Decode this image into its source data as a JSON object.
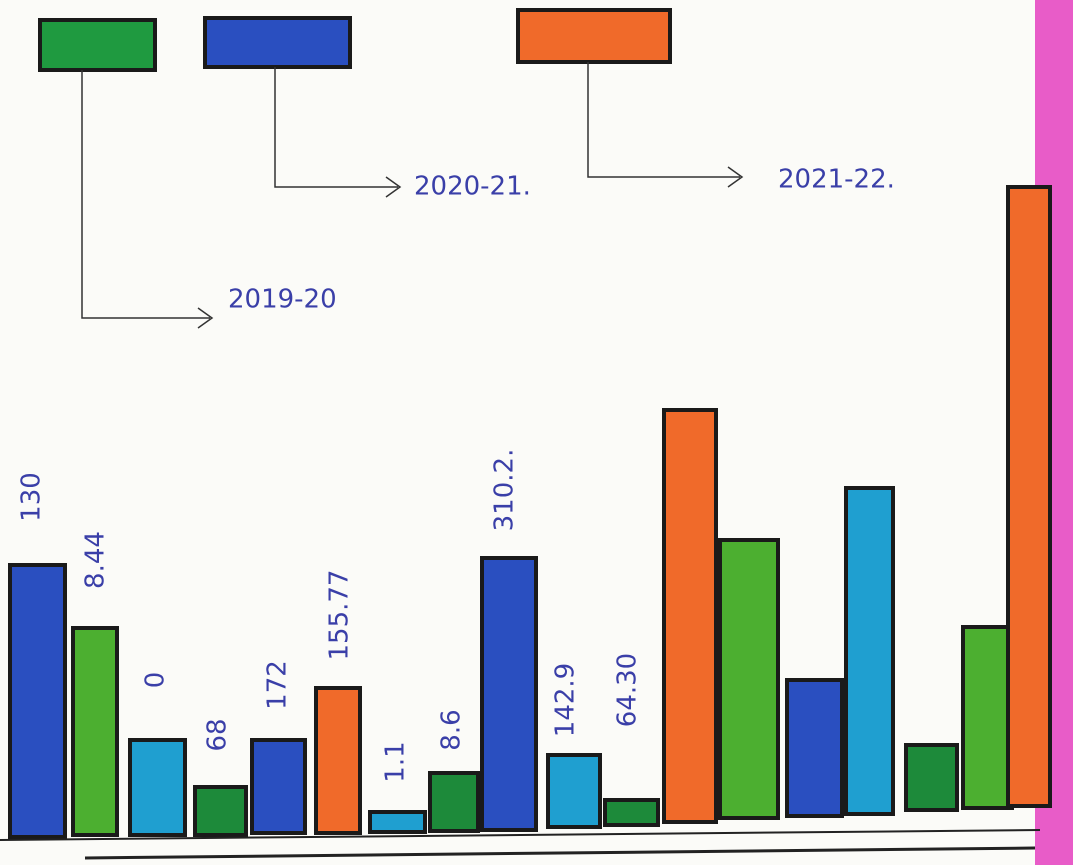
{
  "legend": [
    {
      "label": "2019-20"
    },
    {
      "label": "2020-21."
    },
    {
      "label": "2021-22."
    }
  ],
  "bar_labels": [
    "130",
    "8.44",
    "0",
    "68",
    "172",
    "155.77",
    "1.1",
    "8.6",
    "310.2.",
    "142.9",
    "64.30"
  ]
}
